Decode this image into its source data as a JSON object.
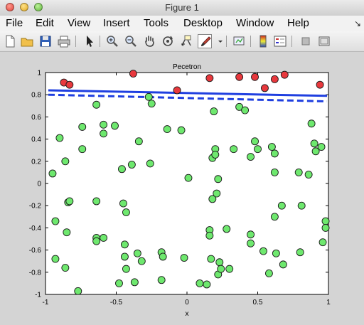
{
  "window": {
    "title": "Figure 1"
  },
  "menu": [
    "File",
    "Edit",
    "View",
    "Insert",
    "Tools",
    "Desktop",
    "Window",
    "Help"
  ],
  "toolbar": [
    "new-file",
    "open-folder",
    "save",
    "print",
    "select-arrow",
    "zoom-in",
    "zoom-out",
    "pan-hand",
    "rotate-3d",
    "data-cursor",
    "brush",
    "brush-dropdown",
    "link-plot",
    "colorbar",
    "legend",
    "hide-plot-tools",
    "show-plot-tools"
  ],
  "chart_data": {
    "type": "scatter",
    "title": "Pecetron",
    "xlabel": "x",
    "ylabel": "",
    "xlim": [
      -1,
      1
    ],
    "ylim": [
      -1,
      1
    ],
    "xticks": [
      "-1",
      "-0.5",
      "0",
      "0.5",
      "1"
    ],
    "yticks": [
      "-1",
      "-0.8",
      "-0.6",
      "-0.4",
      "-0.2",
      "0",
      "0.2",
      "0.4",
      "0.6",
      "0.8",
      "1"
    ],
    "series": [
      {
        "color": "#e8383d",
        "marker": "circle",
        "points": [
          [
            -0.87,
            0.91
          ],
          [
            -0.83,
            0.89
          ],
          [
            -0.38,
            0.99
          ],
          [
            0.16,
            0.95
          ],
          [
            0.37,
            0.96
          ],
          [
            0.48,
            0.96
          ],
          [
            0.55,
            0.86
          ],
          [
            0.62,
            0.94
          ],
          [
            0.69,
            0.98
          ],
          [
            0.94,
            0.89
          ],
          [
            -0.07,
            0.84
          ]
        ]
      },
      {
        "color": "#6ee86e",
        "marker": "circle",
        "points": [
          [
            -0.95,
            0.09
          ],
          [
            -0.9,
            0.41
          ],
          [
            -0.86,
            0.2
          ],
          [
            -0.84,
            -0.17
          ],
          [
            -0.83,
            -0.16
          ],
          [
            -0.85,
            -0.44
          ],
          [
            -0.93,
            -0.34
          ],
          [
            -0.93,
            -0.68
          ],
          [
            -0.86,
            -0.76
          ],
          [
            -0.77,
            -0.97
          ],
          [
            -0.74,
            0.51
          ],
          [
            -0.74,
            0.31
          ],
          [
            -0.64,
            0.71
          ],
          [
            -0.64,
            -0.16
          ],
          [
            -0.64,
            -0.49
          ],
          [
            -0.64,
            -0.52
          ],
          [
            -0.59,
            0.53
          ],
          [
            -0.59,
            0.45
          ],
          [
            -0.59,
            -0.49
          ],
          [
            -0.51,
            0.52
          ],
          [
            -0.46,
            0.13
          ],
          [
            -0.45,
            -0.18
          ],
          [
            -0.43,
            -0.26
          ],
          [
            -0.44,
            -0.55
          ],
          [
            -0.44,
            -0.66
          ],
          [
            -0.43,
            -0.77
          ],
          [
            -0.48,
            -0.9
          ],
          [
            -0.39,
            0.17
          ],
          [
            -0.34,
            0.38
          ],
          [
            -0.37,
            -0.89
          ],
          [
            -0.32,
            -0.7
          ],
          [
            -0.35,
            -0.63
          ],
          [
            -0.27,
            0.78
          ],
          [
            -0.25,
            0.72
          ],
          [
            -0.26,
            0.18
          ],
          [
            -0.18,
            -0.62
          ],
          [
            -0.17,
            -0.66
          ],
          [
            -0.18,
            -0.87
          ],
          [
            -0.14,
            0.49
          ],
          [
            -0.04,
            0.48
          ],
          [
            -0.02,
            -0.67
          ],
          [
            0.01,
            0.05
          ],
          [
            0.09,
            -0.9
          ],
          [
            0.14,
            -0.91
          ],
          [
            0.16,
            -0.42
          ],
          [
            0.16,
            -0.47
          ],
          [
            0.17,
            -0.68
          ],
          [
            0.18,
            0.23
          ],
          [
            0.19,
            0.65
          ],
          [
            0.2,
            0.31
          ],
          [
            0.2,
            0.26
          ],
          [
            0.18,
            -0.14
          ],
          [
            0.21,
            -0.09
          ],
          [
            0.22,
            0.04
          ],
          [
            0.22,
            -0.82
          ],
          [
            0.23,
            -0.71
          ],
          [
            0.24,
            -0.77
          ],
          [
            0.28,
            -0.41
          ],
          [
            0.3,
            -0.77
          ],
          [
            0.33,
            0.31
          ],
          [
            0.37,
            0.69
          ],
          [
            0.41,
            0.66
          ],
          [
            0.45,
            0.24
          ],
          [
            0.45,
            -0.46
          ],
          [
            0.45,
            -0.54
          ],
          [
            0.48,
            0.38
          ],
          [
            0.5,
            0.31
          ],
          [
            0.54,
            -0.61
          ],
          [
            0.58,
            -0.81
          ],
          [
            0.6,
            0.33
          ],
          [
            0.62,
            0.27
          ],
          [
            0.62,
            0.1
          ],
          [
            0.62,
            -0.3
          ],
          [
            0.63,
            -0.63
          ],
          [
            0.67,
            -0.2
          ],
          [
            0.68,
            -0.73
          ],
          [
            0.79,
            0.1
          ],
          [
            0.81,
            -0.2
          ],
          [
            0.8,
            -0.62
          ],
          [
            0.86,
            0.08
          ],
          [
            0.88,
            0.54
          ],
          [
            0.9,
            0.36
          ],
          [
            0.91,
            0.29
          ],
          [
            0.95,
            0.33
          ],
          [
            0.96,
            -0.53
          ],
          [
            0.98,
            -0.34
          ],
          [
            0.98,
            -0.4
          ]
        ]
      }
    ],
    "lines": [
      {
        "style": "solid",
        "color": "#1f3fe0",
        "points": [
          [
            -0.98,
            0.84
          ],
          [
            0.99,
            0.79
          ]
        ]
      },
      {
        "style": "dashed",
        "color": "#1f3fe0",
        "points": [
          [
            -0.98,
            0.8
          ],
          [
            0.99,
            0.74
          ]
        ]
      }
    ]
  }
}
